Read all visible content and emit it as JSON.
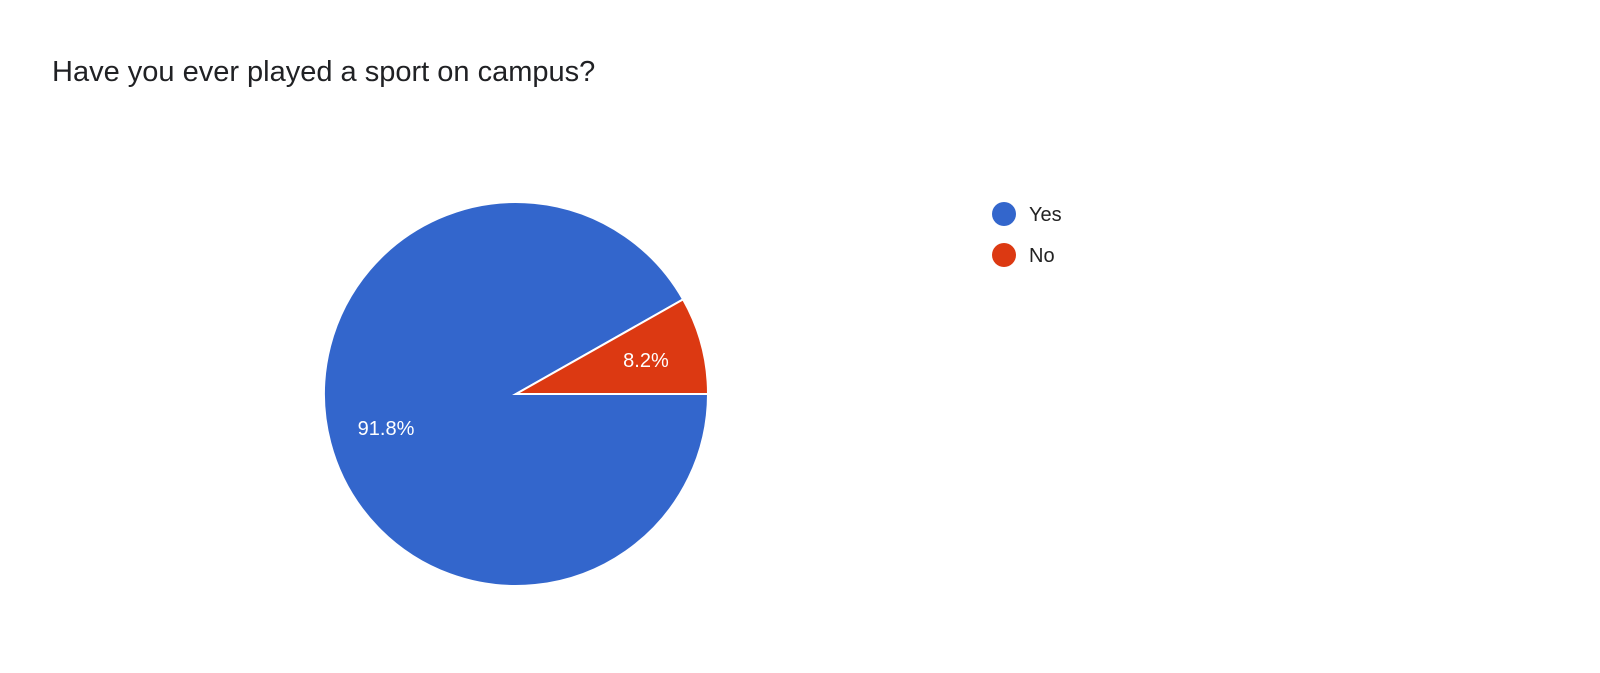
{
  "chart_data": {
    "type": "pie",
    "title": "Have you ever played a sport on campus?",
    "categories": [
      "Yes",
      "No"
    ],
    "values": [
      91.8,
      8.2
    ],
    "data_labels": [
      "91.8%",
      "8.2%"
    ],
    "colors": [
      "#3366cc",
      "#dc3912"
    ],
    "legend": {
      "position": "right",
      "entries": [
        "Yes",
        "No"
      ]
    }
  }
}
